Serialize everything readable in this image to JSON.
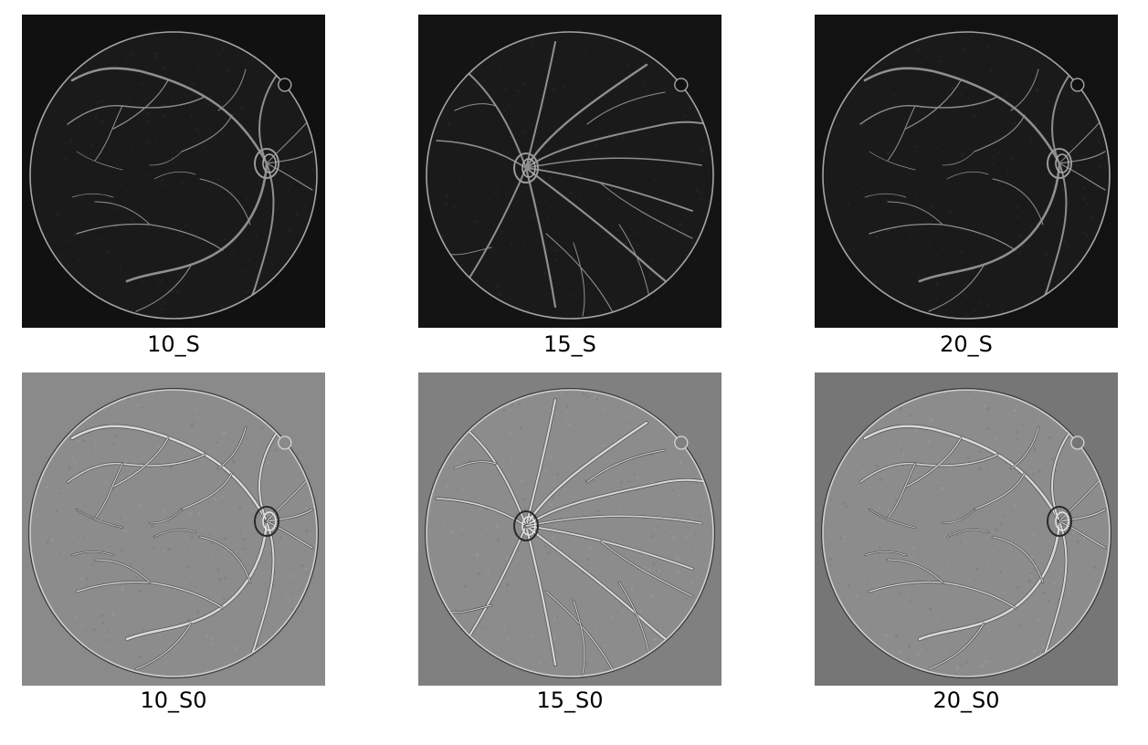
{
  "figure": {
    "panels": [
      {
        "label": "10_S",
        "style": "vesselness",
        "eye": "right-disc",
        "background": "#111111"
      },
      {
        "label": "15_S",
        "style": "vesselness",
        "eye": "center-disc",
        "background": "#141414"
      },
      {
        "label": "20_S",
        "style": "vesselness",
        "eye": "right-disc",
        "background": "#121212"
      },
      {
        "label": "10_S0",
        "style": "residual",
        "eye": "right-disc",
        "background": "#8a8a8a"
      },
      {
        "label": "15_S0",
        "style": "residual",
        "eye": "center-disc",
        "background": "#808080"
      },
      {
        "label": "20_S0",
        "style": "residual",
        "eye": "right-disc",
        "background": "#767676"
      }
    ]
  }
}
